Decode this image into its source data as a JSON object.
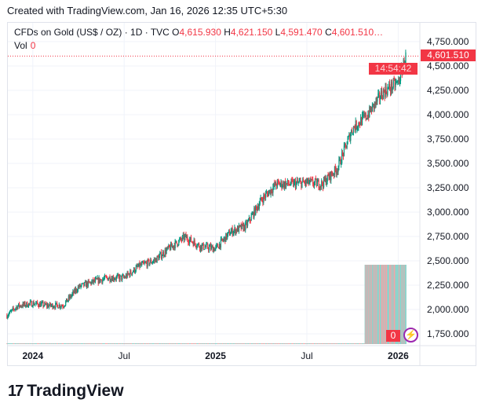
{
  "header": {
    "created": "Created with TradingView.com, Jan 16, 2026 12:35 UTC+5:30"
  },
  "legend": {
    "symbol": "CFDs on Gold (US$ / OZ) · 1D · TVC",
    "o_label": "O",
    "o": "4,615.930",
    "h_label": "H",
    "h": "4,621.150",
    "l_label": "L",
    "l": "4,591.470",
    "c_label": "C",
    "c": "4,601.510…",
    "vol_label": "Vol",
    "vol": "0"
  },
  "price_tag": {
    "price": "4,601.510",
    "countdown": "14:54:42"
  },
  "volume_tag": "0",
  "logo": {
    "mark": "17",
    "text": "TradingView"
  },
  "colors": {
    "up": "#089981",
    "down": "#f23645",
    "vol_up": "#8fd3cb",
    "vol_down": "#f4a3a7"
  },
  "chart_data": {
    "type": "candlestick",
    "title": "CFDs on Gold (US$ / OZ) · 1D · TVC",
    "y_ticks": [
      "4,750.000",
      "4,500.000",
      "4,250.000",
      "4,000.000",
      "3,750.000",
      "3,500.000",
      "3,250.000",
      "3,000.000",
      "2,750.000",
      "2,500.000",
      "2,250.000",
      "2,000.000",
      "1,750.000"
    ],
    "y_tick_values": [
      4750,
      4500,
      4250,
      4000,
      3750,
      3500,
      3250,
      3000,
      2750,
      2500,
      2250,
      2000,
      1750
    ],
    "x_ticks": [
      {
        "label": "2024",
        "month": 2,
        "bold": true
      },
      {
        "label": "Jul",
        "month": 8,
        "bold": false
      },
      {
        "label": "2025",
        "month": 14,
        "bold": true
      },
      {
        "label": "Jul",
        "month": 20,
        "bold": false
      },
      {
        "label": "2026",
        "month": 26,
        "bold": true
      }
    ],
    "monthly_closes": {
      "months_from_nov2023": [
        0.3,
        1,
        2,
        3,
        4,
        5,
        6,
        7,
        8,
        9,
        10,
        11,
        12,
        13,
        14,
        15,
        16,
        17,
        18,
        19,
        20,
        21,
        22,
        23,
        24,
        25,
        26,
        26.5
      ],
      "price": [
        1940,
        2036,
        2063,
        2040,
        2044,
        2230,
        2286,
        2327,
        2326,
        2447,
        2503,
        2634,
        2743,
        2650,
        2624,
        2798,
        2857,
        3124,
        3288,
        3289,
        3303,
        3290,
        3448,
        3858,
        4000,
        4230,
        4330,
        4601
      ]
    },
    "last_price": 4601.51
  }
}
